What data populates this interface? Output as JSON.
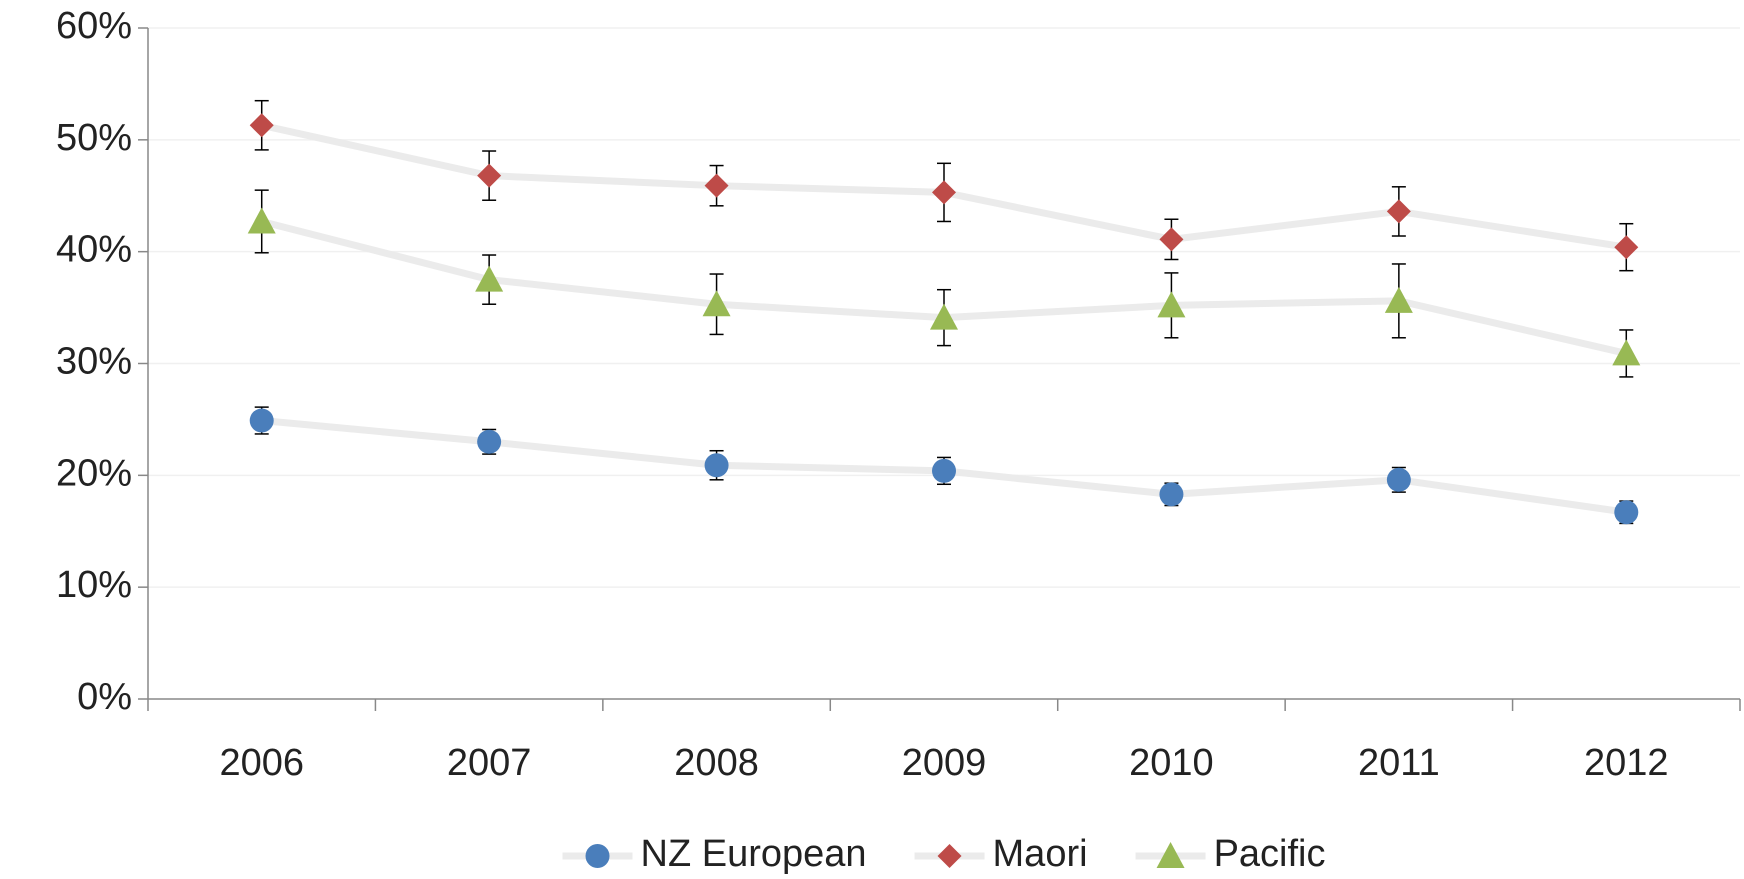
{
  "chart_data": {
    "type": "line",
    "categories": [
      "2006",
      "2007",
      "2008",
      "2009",
      "2010",
      "2011",
      "2012"
    ],
    "series": [
      {
        "name": "NZ European",
        "color": "#4a7ebb",
        "marker": "circle",
        "values": [
          24.9,
          23.0,
          20.9,
          20.4,
          18.3,
          19.6,
          16.7
        ],
        "errors": [
          1.2,
          1.1,
          1.3,
          1.2,
          1.0,
          1.1,
          1.0
        ]
      },
      {
        "name": "Maori",
        "color": "#be4b48",
        "marker": "diamond",
        "values": [
          51.3,
          46.8,
          45.9,
          45.3,
          41.1,
          43.6,
          40.4
        ],
        "errors": [
          2.2,
          2.2,
          1.8,
          2.6,
          1.8,
          2.2,
          2.1
        ]
      },
      {
        "name": "Pacific",
        "color": "#98b954",
        "marker": "triangle",
        "values": [
          42.7,
          37.5,
          35.3,
          34.1,
          35.2,
          35.6,
          30.9
        ],
        "errors": [
          2.8,
          2.2,
          2.7,
          2.5,
          2.9,
          3.3,
          2.1
        ]
      }
    ],
    "line_color": "#ebebeb",
    "ylim": [
      0,
      60
    ],
    "yticks": [
      {
        "value": 0,
        "label": "0%"
      },
      {
        "value": 10,
        "label": "10%"
      },
      {
        "value": 20,
        "label": "20%"
      },
      {
        "value": 30,
        "label": "30%"
      },
      {
        "value": 40,
        "label": "40%"
      },
      {
        "value": 50,
        "label": "50%"
      },
      {
        "value": 60,
        "label": "60%"
      }
    ],
    "grid": true,
    "legend": "bottom"
  }
}
